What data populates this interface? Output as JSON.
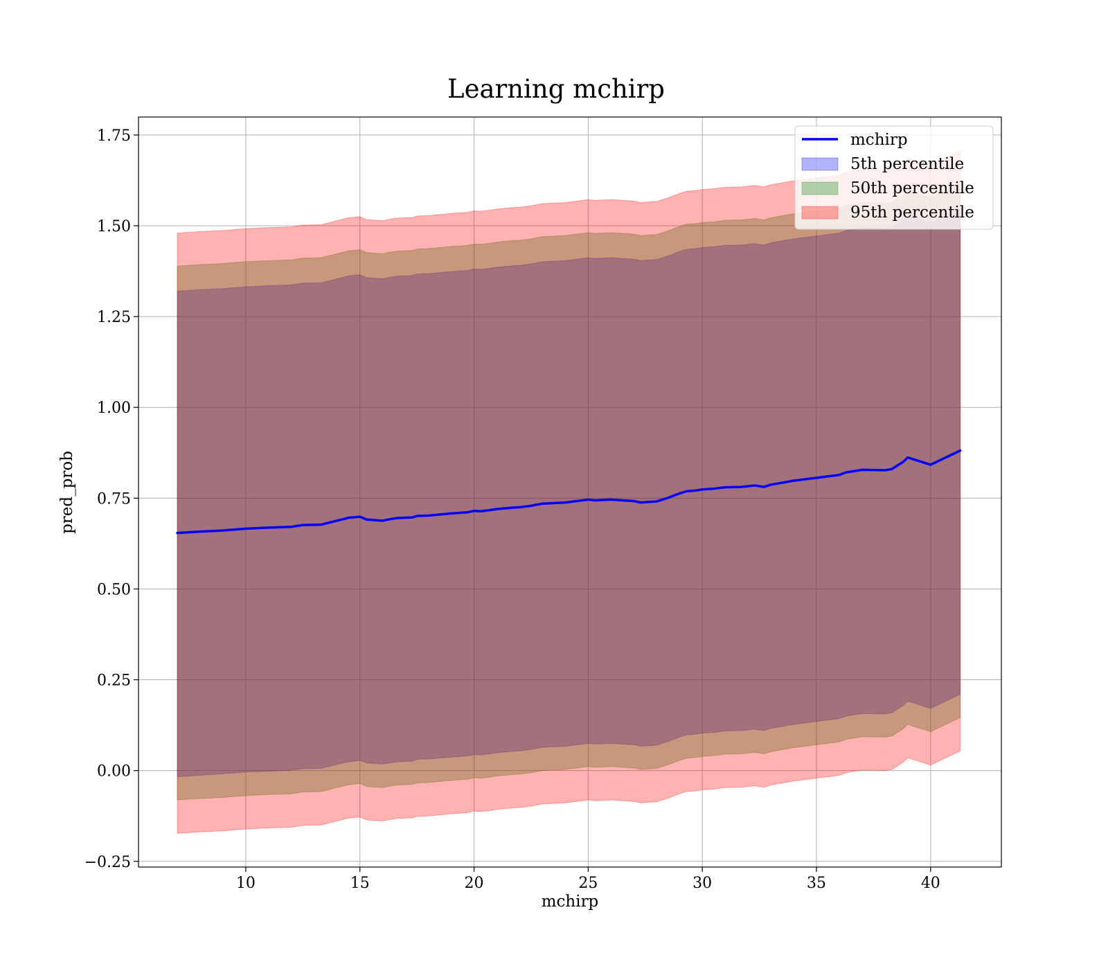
{
  "chart_data": {
    "type": "area",
    "title": "Learning mchirp",
    "xlabel": "mchirp",
    "ylabel": "pred_prob",
    "xlim": [
      5.3,
      43.1
    ],
    "ylim": [
      -0.2657,
      1.7994
    ],
    "xticks": [
      10,
      15,
      20,
      25,
      30,
      35,
      40
    ],
    "xtick_labels": [
      "10",
      "15",
      "20",
      "25",
      "30",
      "35",
      "40"
    ],
    "yticks": [
      -0.25,
      0.0,
      0.25,
      0.5,
      0.75,
      1.0,
      1.25,
      1.5,
      1.75
    ],
    "ytick_labels": [
      "−0.25",
      "0.00",
      "0.25",
      "0.50",
      "0.75",
      "1.00",
      "1.25",
      "1.50",
      "1.75"
    ],
    "grid": true,
    "legend_position": "top-right",
    "x": [
      7.0,
      8.0,
      9.0,
      10.0,
      11.0,
      12.0,
      12.5,
      13.3,
      14.0,
      14.5,
      15.0,
      15.3,
      16.0,
      16.3,
      16.6,
      17.3,
      17.5,
      18.0,
      19.0,
      19.7,
      20.0,
      20.3,
      20.7,
      21.0,
      21.7,
      22.0,
      22.5,
      23.0,
      24.0,
      25.0,
      25.3,
      26.0,
      26.5,
      27.0,
      27.3,
      28.0,
      28.5,
      29.0,
      29.3,
      29.7,
      30.0,
      30.5,
      31.0,
      31.7,
      32.3,
      32.7,
      33.0,
      34.0,
      34.5,
      35.0,
      35.5,
      36.0,
      36.3,
      37.0,
      38.0,
      38.3,
      38.8,
      39.0,
      40.0,
      41.3
    ],
    "series": [
      {
        "name": "mchirp",
        "kind": "line",
        "color": "#0000ff",
        "values": [
          0.654,
          0.658,
          0.661,
          0.666,
          0.669,
          0.671,
          0.676,
          0.677,
          0.688,
          0.696,
          0.699,
          0.691,
          0.688,
          0.692,
          0.695,
          0.697,
          0.701,
          0.702,
          0.708,
          0.711,
          0.715,
          0.714,
          0.717,
          0.72,
          0.724,
          0.725,
          0.729,
          0.735,
          0.738,
          0.746,
          0.744,
          0.746,
          0.744,
          0.742,
          0.738,
          0.741,
          0.751,
          0.763,
          0.769,
          0.771,
          0.774,
          0.776,
          0.78,
          0.781,
          0.785,
          0.781,
          0.787,
          0.798,
          0.802,
          0.806,
          0.81,
          0.814,
          0.821,
          0.828,
          0.827,
          0.83,
          0.85,
          0.862,
          0.842,
          0.881
        ]
      },
      {
        "name": "5th percentile",
        "kind": "band",
        "color": "#0000ff",
        "alpha": 0.3,
        "lower": [
          -0.017,
          -0.013,
          -0.009,
          -0.004,
          -0.002,
          0.001,
          0.005,
          0.006,
          0.017,
          0.024,
          0.028,
          0.021,
          0.018,
          0.021,
          0.024,
          0.026,
          0.031,
          0.032,
          0.037,
          0.04,
          0.044,
          0.043,
          0.046,
          0.049,
          0.053,
          0.054,
          0.058,
          0.064,
          0.067,
          0.075,
          0.073,
          0.075,
          0.073,
          0.071,
          0.067,
          0.07,
          0.08,
          0.092,
          0.098,
          0.1,
          0.103,
          0.105,
          0.109,
          0.11,
          0.114,
          0.11,
          0.116,
          0.127,
          0.131,
          0.135,
          0.139,
          0.143,
          0.15,
          0.157,
          0.156,
          0.159,
          0.179,
          0.191,
          0.171,
          0.21
        ],
        "upper": [
          1.32,
          1.324,
          1.327,
          1.332,
          1.335,
          1.337,
          1.342,
          1.343,
          1.354,
          1.362,
          1.365,
          1.357,
          1.354,
          1.358,
          1.361,
          1.363,
          1.367,
          1.368,
          1.374,
          1.377,
          1.381,
          1.38,
          1.383,
          1.386,
          1.39,
          1.391,
          1.395,
          1.401,
          1.404,
          1.412,
          1.41,
          1.412,
          1.41,
          1.408,
          1.404,
          1.407,
          1.417,
          1.429,
          1.435,
          1.437,
          1.44,
          1.442,
          1.446,
          1.447,
          1.451,
          1.447,
          1.453,
          1.464,
          1.468,
          1.472,
          1.476,
          1.48,
          1.487,
          1.494,
          1.493,
          1.496,
          1.516,
          1.528,
          1.508,
          1.547
        ]
      },
      {
        "name": "50th percentile",
        "kind": "band",
        "color": "#008000",
        "alpha": 0.3,
        "lower": [
          -0.081,
          -0.077,
          -0.074,
          -0.069,
          -0.066,
          -0.064,
          -0.059,
          -0.058,
          -0.047,
          -0.039,
          -0.036,
          -0.044,
          -0.047,
          -0.043,
          -0.04,
          -0.038,
          -0.034,
          -0.033,
          -0.027,
          -0.024,
          -0.02,
          -0.021,
          -0.018,
          -0.015,
          -0.011,
          -0.01,
          -0.006,
          0.0,
          0.003,
          0.011,
          0.009,
          0.011,
          0.009,
          0.007,
          0.003,
          0.006,
          0.016,
          0.028,
          0.034,
          0.036,
          0.039,
          0.041,
          0.045,
          0.046,
          0.05,
          0.046,
          0.052,
          0.063,
          0.067,
          0.071,
          0.075,
          0.079,
          0.086,
          0.093,
          0.092,
          0.095,
          0.115,
          0.127,
          0.107,
          0.146
        ],
        "upper": [
          1.389,
          1.393,
          1.396,
          1.401,
          1.404,
          1.406,
          1.411,
          1.412,
          1.423,
          1.431,
          1.434,
          1.426,
          1.423,
          1.427,
          1.43,
          1.432,
          1.436,
          1.437,
          1.443,
          1.446,
          1.45,
          1.449,
          1.452,
          1.455,
          1.459,
          1.46,
          1.464,
          1.47,
          1.473,
          1.481,
          1.479,
          1.481,
          1.479,
          1.477,
          1.473,
          1.476,
          1.486,
          1.498,
          1.504,
          1.506,
          1.509,
          1.511,
          1.515,
          1.516,
          1.52,
          1.516,
          1.522,
          1.533,
          1.537,
          1.541,
          1.545,
          1.549,
          1.556,
          1.563,
          1.562,
          1.565,
          1.585,
          1.597,
          1.577,
          1.616
        ]
      },
      {
        "name": "95th percentile",
        "kind": "band",
        "color": "#ff0000",
        "alpha": 0.3,
        "lower": [
          -0.173,
          -0.169,
          -0.166,
          -0.161,
          -0.158,
          -0.156,
          -0.151,
          -0.15,
          -0.139,
          -0.131,
          -0.128,
          -0.136,
          -0.139,
          -0.135,
          -0.132,
          -0.13,
          -0.126,
          -0.125,
          -0.119,
          -0.116,
          -0.112,
          -0.113,
          -0.11,
          -0.107,
          -0.103,
          -0.102,
          -0.098,
          -0.092,
          -0.089,
          -0.081,
          -0.083,
          -0.081,
          -0.083,
          -0.085,
          -0.089,
          -0.086,
          -0.076,
          -0.064,
          -0.058,
          -0.056,
          -0.053,
          -0.051,
          -0.047,
          -0.046,
          -0.042,
          -0.046,
          -0.04,
          -0.029,
          -0.025,
          -0.021,
          -0.017,
          -0.013,
          -0.006,
          0.001,
          0.0,
          0.003,
          0.023,
          0.035,
          0.015,
          0.054
        ],
        "upper": [
          1.48,
          1.484,
          1.487,
          1.492,
          1.495,
          1.497,
          1.502,
          1.503,
          1.514,
          1.522,
          1.525,
          1.517,
          1.514,
          1.518,
          1.521,
          1.523,
          1.527,
          1.528,
          1.534,
          1.537,
          1.541,
          1.54,
          1.543,
          1.546,
          1.55,
          1.551,
          1.555,
          1.561,
          1.564,
          1.572,
          1.57,
          1.572,
          1.57,
          1.568,
          1.564,
          1.567,
          1.577,
          1.589,
          1.595,
          1.597,
          1.6,
          1.602,
          1.606,
          1.607,
          1.611,
          1.607,
          1.613,
          1.624,
          1.628,
          1.632,
          1.636,
          1.64,
          1.647,
          1.654,
          1.653,
          1.656,
          1.676,
          1.688,
          1.668,
          1.707
        ]
      }
    ]
  }
}
